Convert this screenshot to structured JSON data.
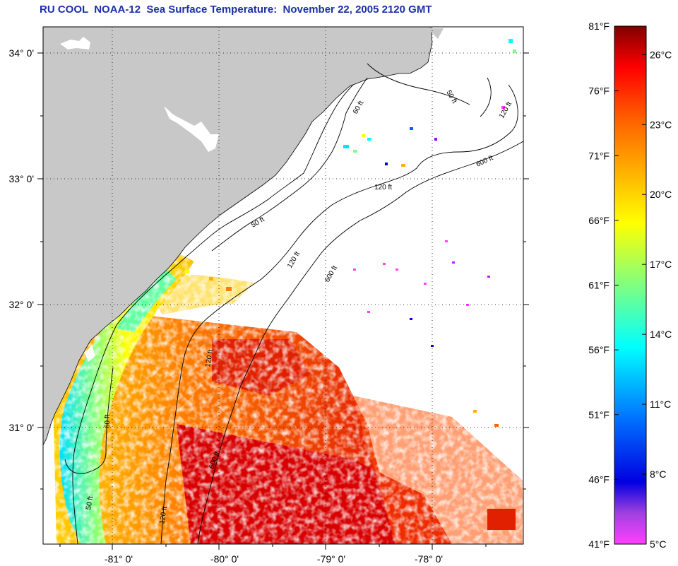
{
  "header": {
    "title": "RU COOL  NOAA-12  Sea Surface Temperature:  November 22, 2005 2120 GMT"
  },
  "map": {
    "x_ticks": [
      "-81° 0'",
      "-80° 0'",
      "-79° 0'",
      "-78° 0'"
    ],
    "y_ticks": [
      "34° 0'",
      "33° 0'",
      "32° 0'",
      "31° 0'"
    ],
    "contour_labels": {
      "c50": "50 ft",
      "c60": "60 ft",
      "c120": "120 ft",
      "c600": "600 ft"
    },
    "colors": {
      "land": "#c8c8c8",
      "cloud": "#ffffff",
      "contour": "#000000",
      "graticule": "#000000"
    }
  },
  "colorbar": {
    "fahrenheit_labels": [
      "81°F",
      "76°F",
      "71°F",
      "66°F",
      "61°F",
      "56°F",
      "51°F",
      "46°F",
      "41°F"
    ],
    "celsius_labels": [
      "26°C",
      "23°C",
      "20°C",
      "17°C",
      "14°C",
      "11°C",
      "8°C",
      "5°C"
    ],
    "range_f": [
      41,
      81
    ],
    "colors": [
      "#ff40ff",
      "#8020c0",
      "#0000e0",
      "#0060ff",
      "#00ffff",
      "#80ff80",
      "#ffff00",
      "#ffb000",
      "#ff6000",
      "#ff0000",
      "#800000"
    ]
  }
}
